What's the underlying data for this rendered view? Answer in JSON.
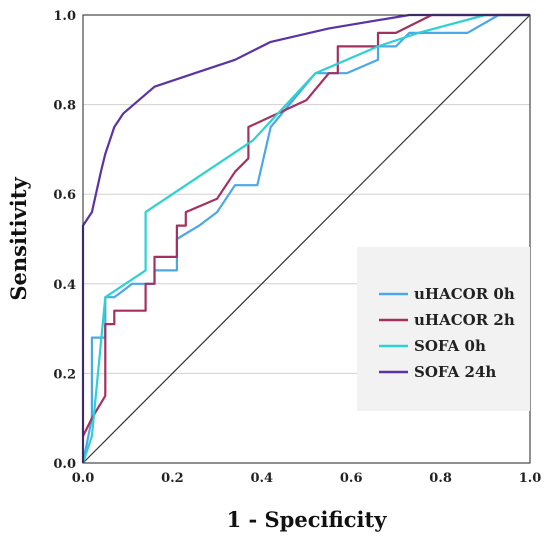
{
  "chart_data": {
    "type": "line",
    "title": "",
    "xlabel": "1 - Specificity",
    "ylabel": "Sensitivity",
    "xlim": [
      0,
      1
    ],
    "ylim": [
      0,
      1
    ],
    "xticks": [
      "0.0",
      "0.2",
      "0.4",
      "0.6",
      "0.8",
      "1.0"
    ],
    "yticks": [
      "0.0",
      "0.2",
      "0.4",
      "0.6",
      "0.8",
      "1.0"
    ],
    "grid": "horizontal",
    "legend_position": "lower-right",
    "reference_line": {
      "x": [
        0,
        1
      ],
      "y": [
        0,
        1
      ],
      "color": "#333333"
    },
    "series": [
      {
        "name": "uHACOR 0h",
        "color": "#4BA8E8",
        "x": [
          0,
          0.02,
          0.02,
          0.05,
          0.05,
          0.07,
          0.11,
          0.16,
          0.16,
          0.21,
          0.21,
          0.26,
          0.3,
          0.34,
          0.39,
          0.42,
          0.52,
          0.59,
          0.66,
          0.66,
          0.7,
          0.73,
          0.86,
          0.93,
          1.0
        ],
        "y": [
          0,
          0.1,
          0.28,
          0.28,
          0.37,
          0.37,
          0.4,
          0.4,
          0.43,
          0.43,
          0.5,
          0.53,
          0.56,
          0.62,
          0.62,
          0.75,
          0.87,
          0.87,
          0.9,
          0.93,
          0.93,
          0.96,
          0.96,
          1.0,
          1.0
        ]
      },
      {
        "name": "uHACOR 2h",
        "color": "#A3315F",
        "x": [
          0,
          0.02,
          0.05,
          0.05,
          0.07,
          0.07,
          0.14,
          0.14,
          0.16,
          0.16,
          0.21,
          0.21,
          0.23,
          0.23,
          0.3,
          0.34,
          0.37,
          0.37,
          0.5,
          0.55,
          0.57,
          0.57,
          0.66,
          0.66,
          0.7,
          0.78,
          1.0
        ],
        "y": [
          0.06,
          0.1,
          0.15,
          0.31,
          0.31,
          0.34,
          0.34,
          0.4,
          0.4,
          0.46,
          0.46,
          0.53,
          0.53,
          0.56,
          0.59,
          0.65,
          0.68,
          0.75,
          0.81,
          0.87,
          0.87,
          0.93,
          0.93,
          0.96,
          0.96,
          1.0,
          1.0
        ]
      },
      {
        "name": "SOFA 0h",
        "color": "#2ED1D1",
        "x": [
          0,
          0.02,
          0.05,
          0.05,
          0.14,
          0.14,
          0.38,
          0.52,
          0.66,
          0.75,
          0.9,
          1.0
        ],
        "y": [
          0,
          0.06,
          0.37,
          0.37,
          0.43,
          0.56,
          0.72,
          0.87,
          0.93,
          0.96,
          1.0,
          1.0
        ]
      },
      {
        "name": "SOFA 24h",
        "color": "#5A33A6",
        "x": [
          0,
          0,
          0.02,
          0.04,
          0.05,
          0.07,
          0.09,
          0.16,
          0.25,
          0.34,
          0.42,
          0.55,
          0.73,
          1.0
        ],
        "y": [
          0,
          0.53,
          0.56,
          0.65,
          0.69,
          0.75,
          0.78,
          0.84,
          0.87,
          0.9,
          0.94,
          0.97,
          1.0,
          1.0
        ]
      }
    ]
  }
}
